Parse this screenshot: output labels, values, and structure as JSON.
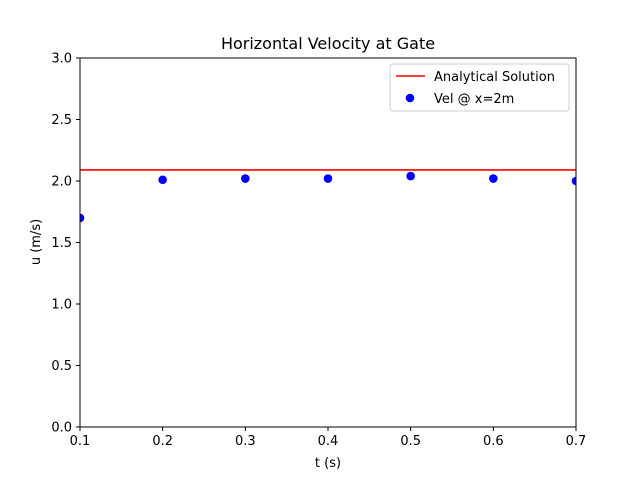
{
  "chart_data": {
    "type": "line",
    "title": "Horizontal Velocity at Gate",
    "xlabel": "t (s)",
    "ylabel": "u (m/s)",
    "xlim": [
      0.1,
      0.7
    ],
    "ylim": [
      0.0,
      3.0
    ],
    "xticks": [
      "0.1",
      "0.2",
      "0.3",
      "0.4",
      "0.5",
      "0.6",
      "0.7"
    ],
    "yticks": [
      "0.0",
      "0.5",
      "1.0",
      "1.5",
      "2.0",
      "2.5",
      "3.0"
    ],
    "grid": false,
    "legend_position": "top-right",
    "series": [
      {
        "name": "Analytical Solution",
        "kind": "line",
        "color": "#ff0000",
        "x": [
          0.1,
          0.7
        ],
        "y": [
          2.09,
          2.09
        ]
      },
      {
        "name": "Vel @ x=2m",
        "kind": "scatter",
        "color": "#0000ff",
        "x": [
          0.1,
          0.2,
          0.3,
          0.4,
          0.5,
          0.6,
          0.7
        ],
        "y": [
          1.7,
          2.01,
          2.02,
          2.02,
          2.04,
          2.02,
          2.0
        ]
      }
    ]
  }
}
